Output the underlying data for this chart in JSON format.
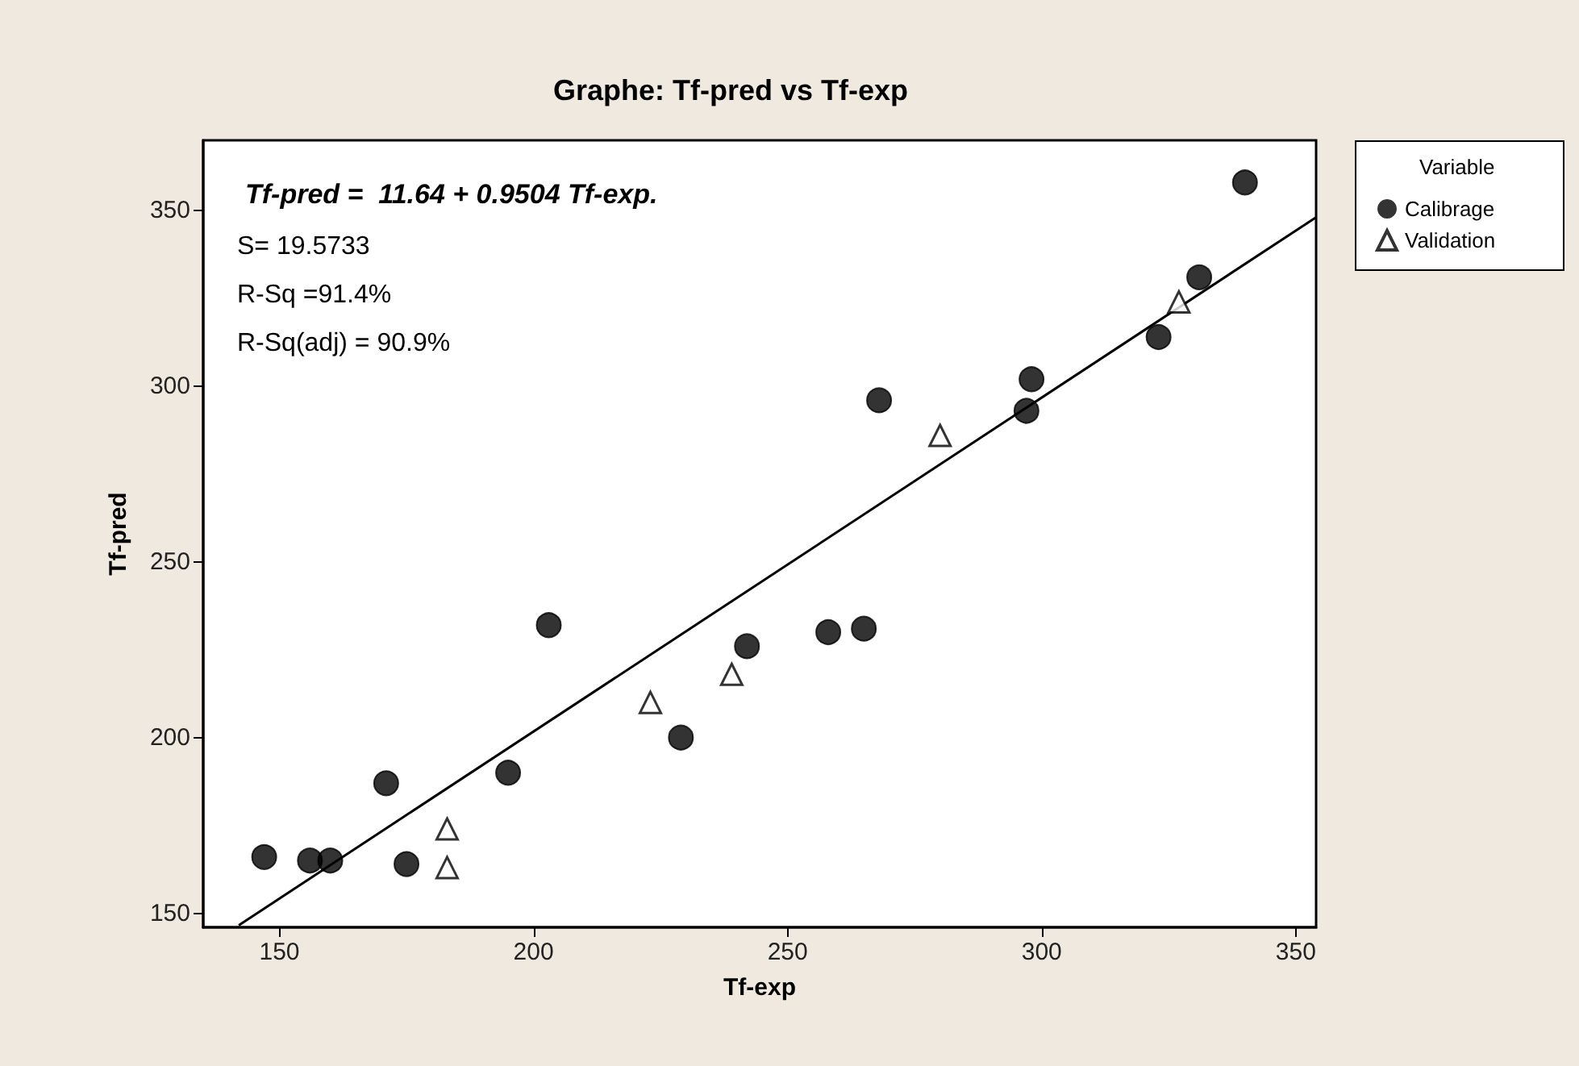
{
  "chart_data": {
    "type": "scatter",
    "title": "Graphe: Tf-pred vs Tf-exp",
    "xlabel": "Tf-exp",
    "ylabel": "Tf-pred",
    "legend_title": "Variable",
    "legend": "right",
    "annotations": [
      "Tf-pred =  11.64 + 0.9504 Tf-exp.",
      "S= 19.5733",
      "R-Sq =91.4%",
      "R-Sq(adj) = 90.9%"
    ],
    "xlim": [
      135,
      354
    ],
    "xticks": [
      150,
      200,
      250,
      300,
      350
    ],
    "ylim": [
      146,
      370
    ],
    "yticks": [
      150,
      200,
      250,
      300,
      350
    ],
    "grid": false,
    "series": [
      {
        "name": "Calibrage",
        "color": "#000000",
        "marker": "circle",
        "x": [
          147,
          156,
          160,
          171,
          175,
          195,
          203,
          229,
          242,
          258,
          265,
          268,
          298,
          297,
          323,
          331,
          340
        ],
        "values": [
          166,
          165,
          165,
          187,
          164,
          190,
          232,
          200,
          226,
          230,
          231,
          296,
          302,
          293,
          314,
          331,
          358
        ]
      },
      {
        "name": "Validation",
        "color": "#000000",
        "marker": "triangle",
        "x": [
          183,
          183,
          223,
          239,
          280,
          327
        ],
        "values": [
          174,
          163,
          210,
          218,
          286,
          324
        ]
      },
      {
        "type": "line",
        "color": "#000000",
        "marker": "none",
        "x": [
          142,
          354
        ],
        "values": [
          146.6,
          348.1
        ]
      }
    ]
  }
}
